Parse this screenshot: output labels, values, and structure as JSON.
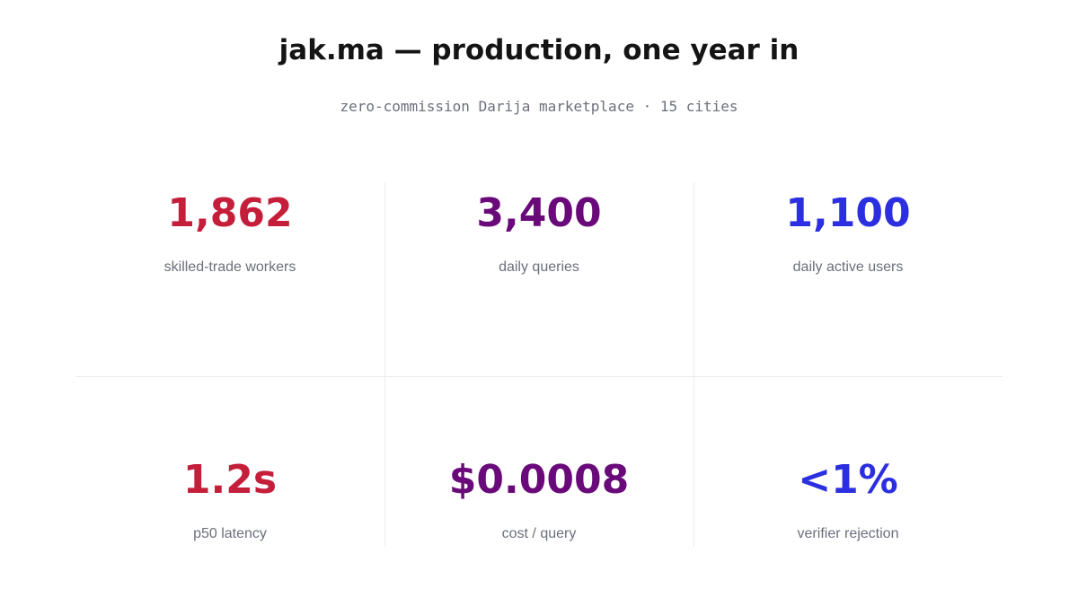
{
  "header": {
    "title": "jak.ma — production, one year in",
    "subtitle": "zero-commission Darija marketplace · 15 cities"
  },
  "metrics": [
    {
      "value": "1,862",
      "label": "skilled-trade workers",
      "color": "#c41e3a"
    },
    {
      "value": "3,400",
      "label": "daily queries",
      "color": "#6a0a7a"
    },
    {
      "value": "1,100",
      "label": "daily active users",
      "color": "#2b2fdf"
    },
    {
      "value": "1.2s",
      "label": "p50 latency",
      "color": "#c41e3a"
    },
    {
      "value": "$0.0008",
      "label": "cost / query",
      "color": "#6a0a7a"
    },
    {
      "value": "<1%",
      "label": "verifier rejection",
      "color": "#2b2fdf"
    }
  ]
}
